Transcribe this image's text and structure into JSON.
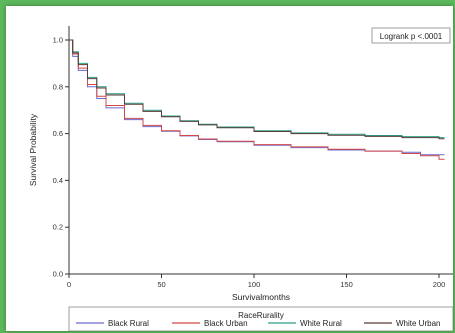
{
  "chart_data": {
    "type": "line",
    "title": "",
    "xlabel": "Survivalmonths",
    "ylabel": "Survival Probability",
    "xlim": [
      0,
      200
    ],
    "ylim": [
      0.0,
      1.0
    ],
    "xticks": [
      "0",
      "50",
      "100",
      "150",
      "200"
    ],
    "yticks": [
      "0.0",
      "0.2",
      "0.4",
      "0.6",
      "0.8",
      "1.0"
    ],
    "annotation": "Logrank p <.0001",
    "legend_title": "RaceRurality",
    "legend_position": "bottom",
    "grid": false,
    "series": [
      {
        "name": "Black Rural",
        "color": "#6a6ad0",
        "x": [
          0,
          2,
          5,
          10,
          15,
          20,
          30,
          40,
          50,
          60,
          70,
          80,
          100,
          120,
          140,
          160,
          180,
          190,
          200,
          203
        ],
        "y": [
          1.0,
          0.93,
          0.87,
          0.8,
          0.75,
          0.71,
          0.66,
          0.63,
          0.61,
          0.59,
          0.575,
          0.565,
          0.55,
          0.54,
          0.53,
          0.525,
          0.52,
          0.51,
          0.51,
          0.51
        ]
      },
      {
        "name": "Black Urban",
        "color": "#d04848",
        "x": [
          0,
          2,
          5,
          10,
          15,
          20,
          30,
          40,
          50,
          60,
          70,
          80,
          100,
          120,
          140,
          160,
          180,
          190,
          200,
          203
        ],
        "y": [
          1.0,
          0.94,
          0.88,
          0.81,
          0.76,
          0.72,
          0.665,
          0.635,
          0.612,
          0.592,
          0.577,
          0.567,
          0.553,
          0.543,
          0.533,
          0.525,
          0.515,
          0.505,
          0.49,
          0.49
        ]
      },
      {
        "name": "White Rural",
        "color": "#2aa08a",
        "x": [
          0,
          2,
          5,
          10,
          15,
          20,
          30,
          40,
          50,
          60,
          70,
          80,
          100,
          120,
          140,
          160,
          180,
          200,
          203
        ],
        "y": [
          1.0,
          0.95,
          0.9,
          0.84,
          0.8,
          0.77,
          0.73,
          0.7,
          0.675,
          0.655,
          0.64,
          0.628,
          0.612,
          0.603,
          0.597,
          0.592,
          0.587,
          0.583,
          0.583
        ]
      },
      {
        "name": "White Urban",
        "color": "#5a3a32",
        "x": [
          0,
          2,
          5,
          10,
          15,
          20,
          30,
          40,
          50,
          60,
          70,
          80,
          100,
          120,
          140,
          160,
          180,
          200,
          203
        ],
        "y": [
          1.0,
          0.945,
          0.895,
          0.835,
          0.795,
          0.765,
          0.725,
          0.695,
          0.672,
          0.652,
          0.637,
          0.625,
          0.609,
          0.6,
          0.593,
          0.588,
          0.583,
          0.578,
          0.578
        ]
      }
    ]
  }
}
